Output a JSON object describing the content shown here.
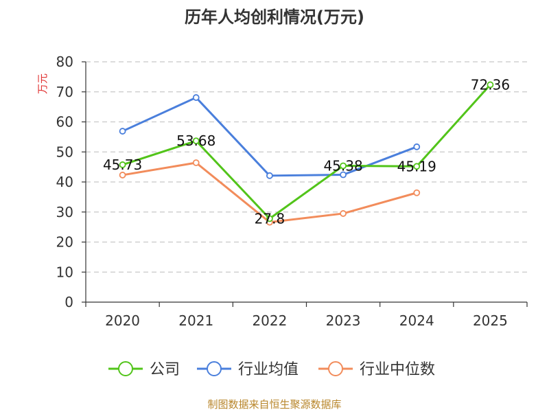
{
  "chart_data": {
    "type": "line",
    "title": "历年人均创利情况(万元)",
    "ylabel": "万元",
    "xlabel": "",
    "categories": [
      "2020",
      "2021",
      "2022",
      "2023",
      "2024",
      "2025"
    ],
    "ylim": [
      0,
      80
    ],
    "yticks": [
      0,
      10,
      20,
      30,
      40,
      50,
      60,
      70,
      80
    ],
    "grid": true,
    "legend_position": "bottom",
    "series": [
      {
        "name": "公司",
        "color": "#52c41a",
        "values": [
          45.73,
          53.68,
          27.8,
          45.38,
          45.19,
          72.36
        ],
        "labels": [
          "45.73",
          "53.68",
          "27.8",
          "45.38",
          "45.19",
          "72.36"
        ]
      },
      {
        "name": "行业均值",
        "color": "#4a7fdc",
        "values": [
          56.9,
          68.1,
          42.1,
          42.4,
          51.7,
          null
        ]
      },
      {
        "name": "行业中位数",
        "color": "#f28c5b",
        "values": [
          42.3,
          46.4,
          26.6,
          29.5,
          36.4,
          null
        ]
      }
    ]
  },
  "source_text": "制图数据来自恒生聚源数据库"
}
